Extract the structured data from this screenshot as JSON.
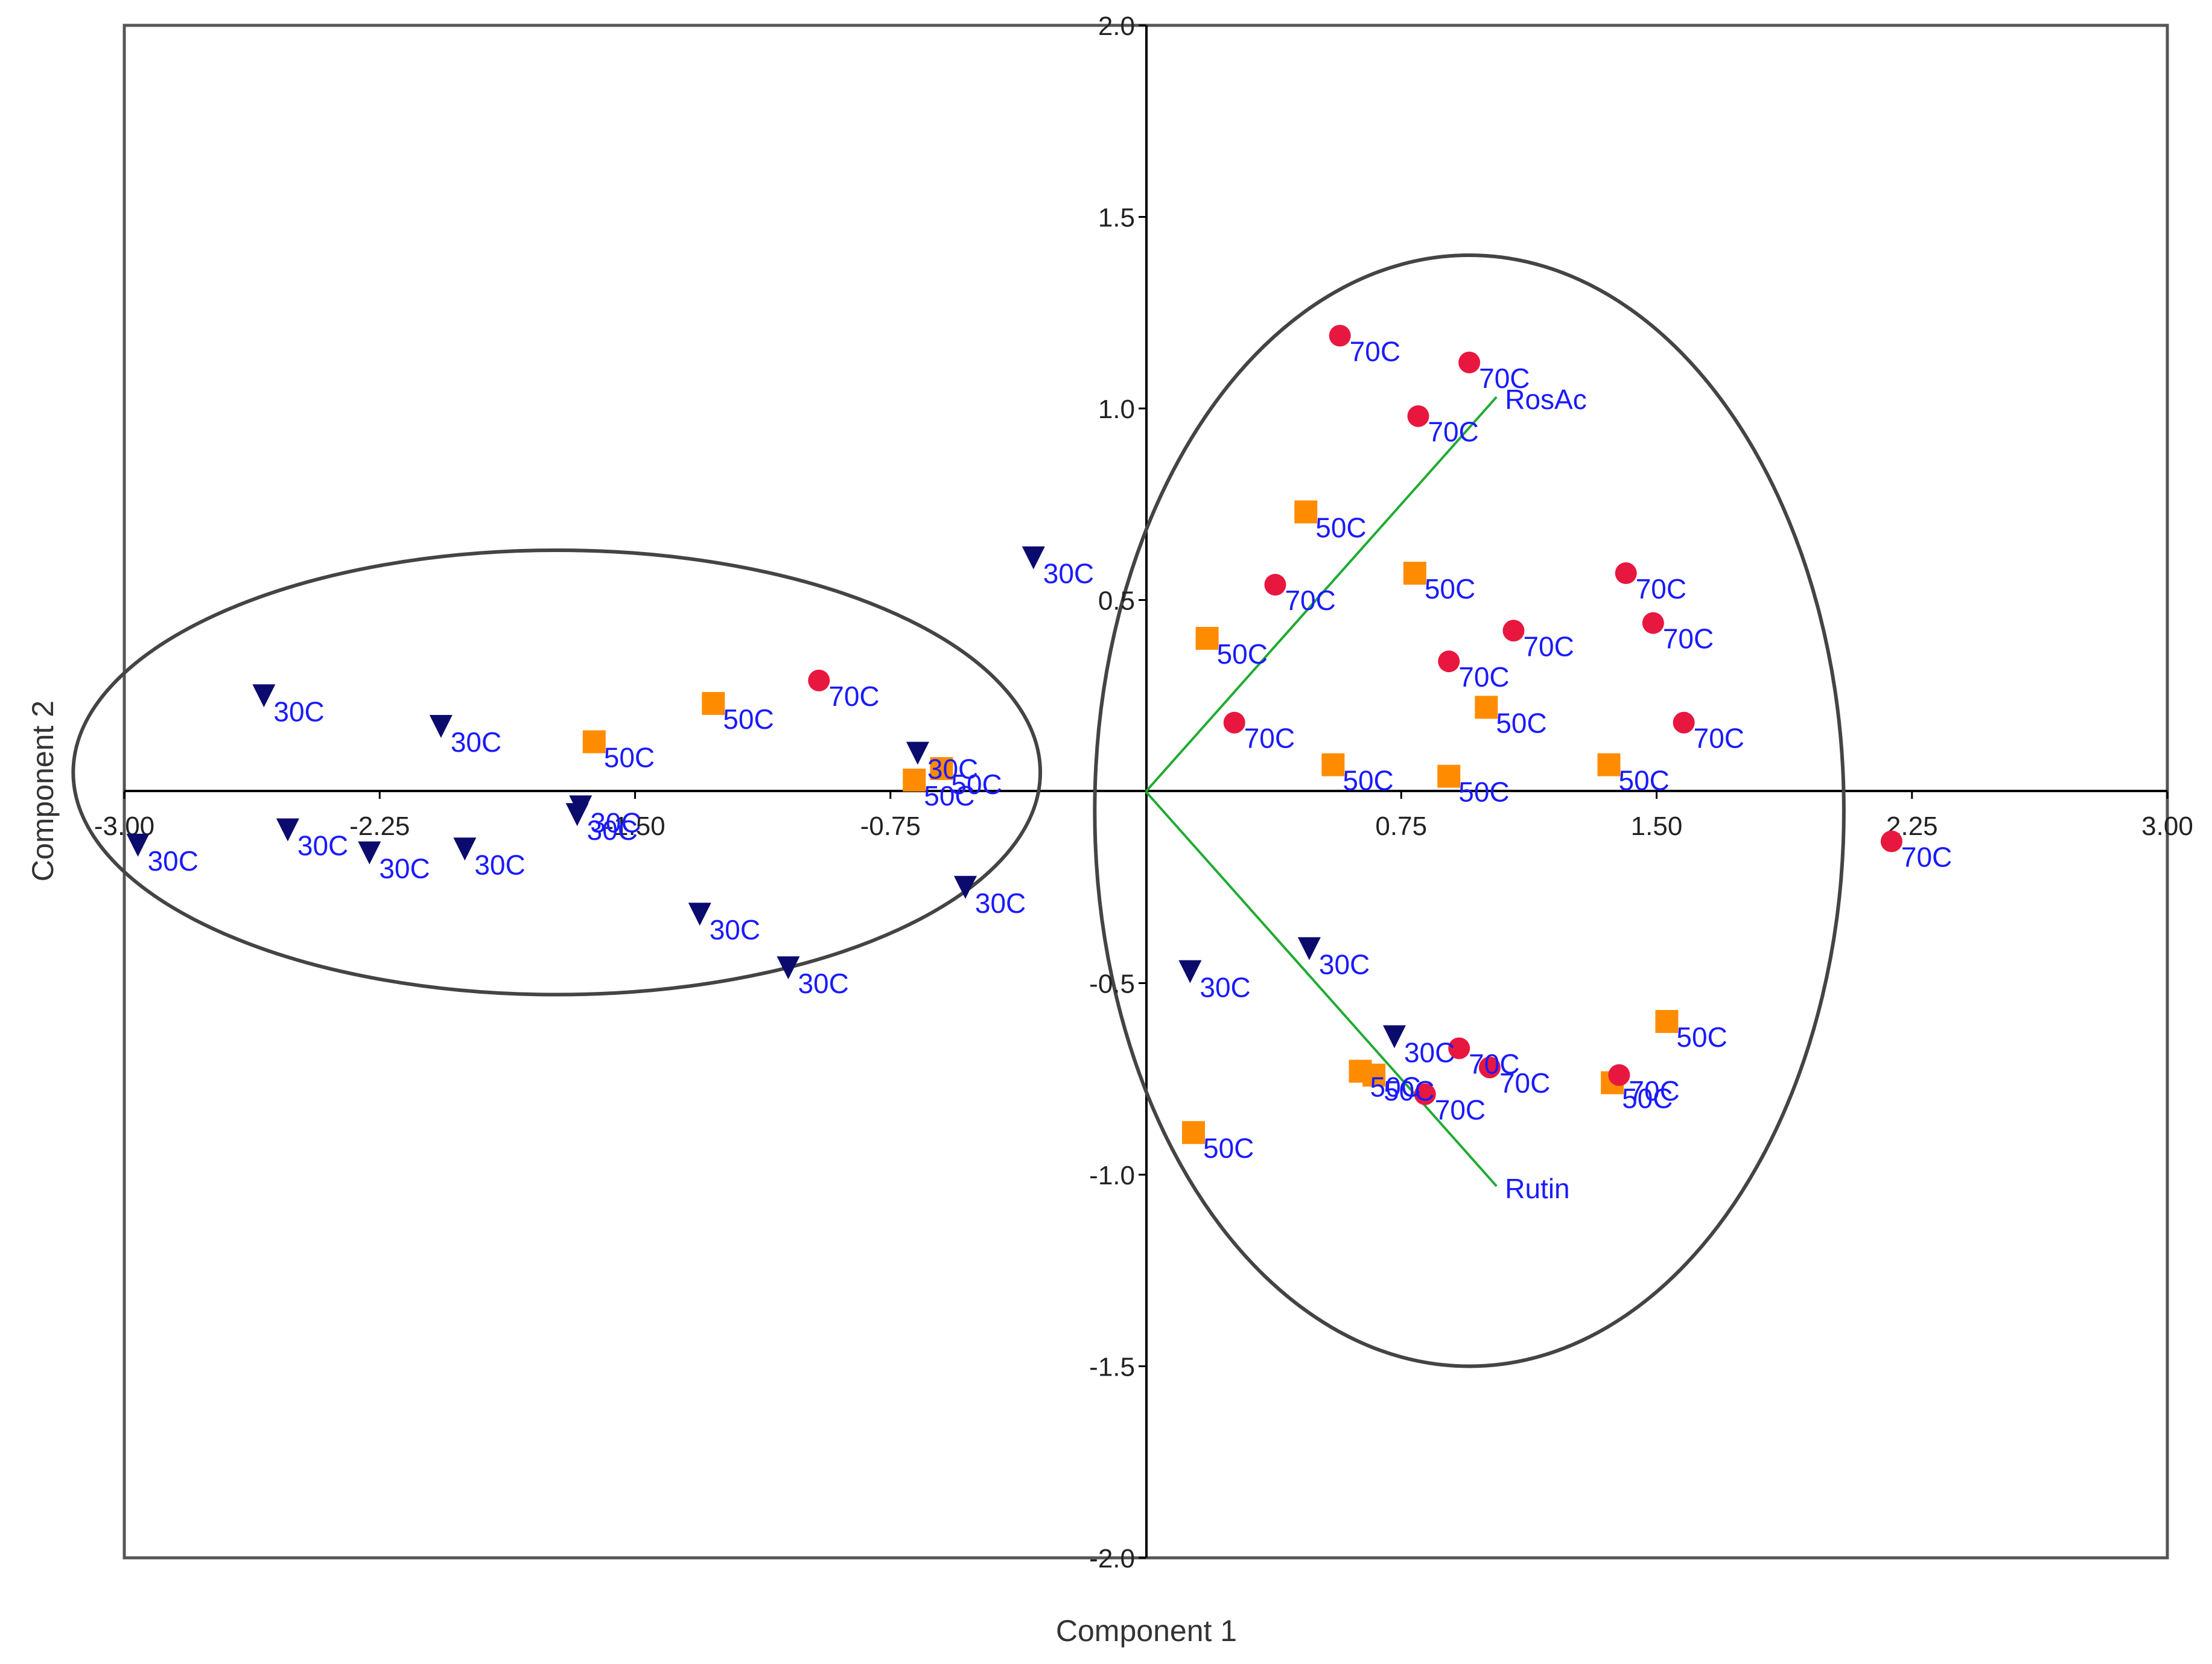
{
  "chart_data": {
    "type": "scatter",
    "title": "",
    "xlabel": "Component 1",
    "ylabel": "Component 2",
    "xlim": [
      -3.0,
      3.0
    ],
    "ylim": [
      -2.0,
      2.0
    ],
    "grid": false,
    "x_tick_labels": [
      {
        "value": -3.0,
        "label": "-3.00"
      },
      {
        "value": -2.25,
        "label": "-2.25"
      },
      {
        "value": -1.5,
        "label": "-1.50"
      },
      {
        "value": -0.75,
        "label": "-0.75"
      },
      {
        "value": 0.75,
        "label": "0.75"
      },
      {
        "value": 1.5,
        "label": "1.50"
      },
      {
        "value": 2.25,
        "label": "2.25"
      },
      {
        "value": 3.0,
        "label": "3.00"
      }
    ],
    "y_tick_labels": [
      {
        "value": 2.0,
        "label": "2.0"
      },
      {
        "value": 1.5,
        "label": "1.5"
      },
      {
        "value": 1.0,
        "label": "1.0"
      },
      {
        "value": 0.5,
        "label": "0.5"
      },
      {
        "value": -0.5,
        "label": "-0.5"
      },
      {
        "value": -1.0,
        "label": "-1.0"
      },
      {
        "value": -1.5,
        "label": "-1.5"
      },
      {
        "value": -2.0,
        "label": "-2.0"
      }
    ],
    "series": [
      {
        "name": "30C",
        "marker": "triangle-down",
        "color": "#0b0b6e",
        "points": [
          {
            "x": -2.96,
            "y": -0.14,
            "label": "30C"
          },
          {
            "x": -2.59,
            "y": 0.25,
            "label": "30C"
          },
          {
            "x": -2.52,
            "y": -0.1,
            "label": "30C"
          },
          {
            "x": -2.28,
            "y": -0.16,
            "label": "30C"
          },
          {
            "x": -2.07,
            "y": 0.17,
            "label": "30C"
          },
          {
            "x": -2.0,
            "y": -0.15,
            "label": "30C"
          },
          {
            "x": -1.67,
            "y": -0.06,
            "label": "30C"
          },
          {
            "x": -1.66,
            "y": -0.04,
            "label": "30C"
          },
          {
            "x": -1.31,
            "y": -0.32,
            "label": "30C"
          },
          {
            "x": -1.05,
            "y": -0.46,
            "label": "30C"
          },
          {
            "x": -0.67,
            "y": 0.1,
            "label": "30C"
          },
          {
            "x": -0.53,
            "y": -0.25,
            "label": "30C"
          },
          {
            "x": -0.33,
            "y": 0.61,
            "label": "30C"
          },
          {
            "x": 0.13,
            "y": -0.47,
            "label": "30C"
          },
          {
            "x": 0.48,
            "y": -0.41,
            "label": "30C"
          },
          {
            "x": 0.73,
            "y": -0.64,
            "label": "30C"
          }
        ]
      },
      {
        "name": "50C",
        "marker": "square",
        "color": "#ff8c00",
        "points": [
          {
            "x": -1.62,
            "y": 0.13,
            "label": "50C"
          },
          {
            "x": -1.27,
            "y": 0.23,
            "label": "50C"
          },
          {
            "x": -0.68,
            "y": 0.03,
            "label": "50C"
          },
          {
            "x": -0.6,
            "y": 0.06,
            "label": "50C"
          },
          {
            "x": 0.18,
            "y": 0.4,
            "label": "50C"
          },
          {
            "x": 0.47,
            "y": 0.73,
            "label": "50C"
          },
          {
            "x": 0.55,
            "y": 0.07,
            "label": "50C"
          },
          {
            "x": 0.79,
            "y": 0.57,
            "label": "50C"
          },
          {
            "x": 0.89,
            "y": 0.04,
            "label": "50C"
          },
          {
            "x": 1.0,
            "y": 0.22,
            "label": "50C"
          },
          {
            "x": 1.36,
            "y": 0.07,
            "label": "50C"
          },
          {
            "x": 1.53,
            "y": -0.6,
            "label": "50C"
          },
          {
            "x": 1.37,
            "y": -0.76,
            "label": "50C"
          },
          {
            "x": 0.63,
            "y": -0.73,
            "label": "50C"
          },
          {
            "x": 0.67,
            "y": -0.74,
            "label": "50C"
          },
          {
            "x": 0.14,
            "y": -0.89,
            "label": "50C"
          }
        ]
      },
      {
        "name": "70C",
        "marker": "circle",
        "color": "#e8173f",
        "points": [
          {
            "x": -0.96,
            "y": 0.29,
            "label": "70C"
          },
          {
            "x": 0.57,
            "y": 1.19,
            "label": "70C"
          },
          {
            "x": 0.95,
            "y": 1.12,
            "label": "70C"
          },
          {
            "x": 0.8,
            "y": 0.98,
            "label": "70C"
          },
          {
            "x": 0.38,
            "y": 0.54,
            "label": "70C"
          },
          {
            "x": 1.41,
            "y": 0.57,
            "label": "70C"
          },
          {
            "x": 1.49,
            "y": 0.44,
            "label": "70C"
          },
          {
            "x": 1.08,
            "y": 0.42,
            "label": "70C"
          },
          {
            "x": 0.89,
            "y": 0.34,
            "label": "70C"
          },
          {
            "x": 0.26,
            "y": 0.18,
            "label": "70C"
          },
          {
            "x": 1.58,
            "y": 0.18,
            "label": "70C"
          },
          {
            "x": 2.19,
            "y": -0.13,
            "label": "70C"
          },
          {
            "x": 0.92,
            "y": -0.67,
            "label": "70C"
          },
          {
            "x": 1.01,
            "y": -0.72,
            "label": "70C"
          },
          {
            "x": 1.39,
            "y": -0.74,
            "label": "70C"
          },
          {
            "x": 0.82,
            "y": -0.79,
            "label": "70C"
          }
        ]
      }
    ],
    "loadings": [
      {
        "name": "RosAc",
        "label": "RosAc",
        "x": 1.03,
        "y": 1.03,
        "color": "#22aa33"
      },
      {
        "name": "Rutin",
        "label": "Rutin",
        "x": 1.03,
        "y": -1.03,
        "color": "#22aa33"
      }
    ],
    "ellipses": [
      {
        "name": "left-cluster",
        "cx": -1.73,
        "cy": 0.05,
        "rx": 1.42,
        "ry": 0.58
      },
      {
        "name": "right-cluster",
        "cx": 0.95,
        "cy": -0.05,
        "rx": 1.1,
        "ry": 1.45
      }
    ],
    "colors": {
      "label_text": "#1a1aff",
      "axis": "#000000",
      "frame": "#555555",
      "ellipse": "#444444"
    }
  }
}
